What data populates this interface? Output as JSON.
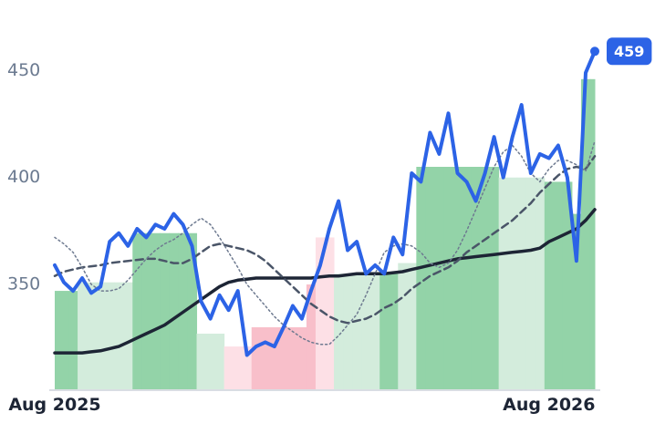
{
  "chart_data": {
    "type": "line",
    "categories": [
      "Aug 2025",
      null,
      null,
      null,
      null,
      null,
      null,
      null,
      null,
      null,
      null,
      null,
      null,
      null,
      null,
      null,
      null,
      null,
      null,
      null,
      null,
      null,
      null,
      null,
      null,
      null,
      null,
      null,
      null,
      null,
      null,
      null,
      null,
      null,
      null,
      null,
      null,
      null,
      null,
      null,
      null,
      null,
      null,
      null,
      null,
      null,
      null,
      null,
      null,
      null,
      null,
      null,
      null,
      null,
      "Aug 2026",
      null,
      null,
      null,
      null,
      null
    ],
    "ylim": [
      301,
      483
    ],
    "yticks": [
      350,
      400,
      450
    ],
    "bars": {
      "values": [
        347,
        347,
        347,
        351,
        351,
        351,
        351,
        351,
        351,
        374,
        374,
        374,
        374,
        374,
        374,
        374,
        327,
        327,
        327,
        321,
        321,
        321,
        330,
        330,
        330,
        330,
        330,
        330,
        350,
        372,
        372,
        355,
        355,
        355,
        355,
        355,
        355,
        355,
        360,
        360,
        405,
        405,
        405,
        405,
        405,
        405,
        405,
        405,
        405,
        400,
        400,
        400,
        400,
        400,
        398,
        398,
        398,
        383,
        446,
        446
      ],
      "colors": [
        "#93d3a8",
        "#93d3a8",
        "#93d3a8",
        "#d3ecdc",
        "#d3ecdc",
        "#d3ecdc",
        "#d3ecdc",
        "#d3ecdc",
        "#d3ecdc",
        "#93d3a8",
        "#93d3a8",
        "#93d3a8",
        "#93d3a8",
        "#93d3a8",
        "#93d3a8",
        "#93d3a8",
        "#d3ecdc",
        "#d3ecdc",
        "#d3ecdc",
        "#fde0e6",
        "#fde0e6",
        "#fde0e6",
        "#f8bfca",
        "#f8bfca",
        "#f8bfca",
        "#f8bfca",
        "#f8bfca",
        "#f8bfca",
        "#f8bfca",
        "#fde0e6",
        "#fde0e6",
        "#d3ecdc",
        "#d3ecdc",
        "#d3ecdc",
        "#d3ecdc",
        "#d3ecdc",
        "#93d3a8",
        "#93d3a8",
        "#d3ecdc",
        "#d3ecdc",
        "#93d3a8",
        "#93d3a8",
        "#93d3a8",
        "#93d3a8",
        "#93d3a8",
        "#93d3a8",
        "#93d3a8",
        "#93d3a8",
        "#93d3a8",
        "#d3ecdc",
        "#d3ecdc",
        "#d3ecdc",
        "#d3ecdc",
        "#d3ecdc",
        "#93d3a8",
        "#93d3a8",
        "#93d3a8",
        "#93d3a8",
        "#93d3a8",
        "#93d3a8"
      ]
    },
    "series": [
      {
        "color": "#1d2535",
        "width": 3.5,
        "dash": "none",
        "values": [
          318,
          318,
          318,
          318,
          318.5,
          319,
          320,
          321,
          323,
          325,
          327,
          329,
          331,
          334,
          337,
          340,
          343,
          346,
          349,
          351,
          352,
          352.5,
          353,
          353,
          353,
          353,
          353,
          353,
          353,
          353.5,
          354,
          354,
          354.5,
          355,
          355,
          355,
          355,
          355.5,
          356,
          357,
          358,
          359,
          360,
          361,
          362,
          362.5,
          363,
          363.5,
          364,
          364.5,
          365,
          365.5,
          366,
          367,
          370,
          372,
          374,
          376,
          380,
          385
        ]
      },
      {
        "color": "#4a5568",
        "width": 2.5,
        "dash": "8 5",
        "values": [
          354,
          356,
          357,
          358,
          358.5,
          359,
          360,
          360.5,
          361,
          361.5,
          362,
          362,
          361,
          360,
          360,
          362,
          365,
          368,
          369,
          368,
          367,
          366,
          364,
          361,
          357,
          353,
          349,
          345,
          341,
          338,
          335,
          333,
          332,
          333,
          334,
          336,
          339,
          341,
          344,
          348,
          351,
          354,
          356,
          358,
          361,
          365,
          368,
          371,
          374,
          377,
          380,
          384,
          388,
          393,
          397,
          401,
          404,
          405,
          404,
          410
        ]
      },
      {
        "color": "#6e7a90",
        "width": 1.5,
        "dash": "2 3",
        "values": [
          372,
          369,
          365,
          358,
          350,
          347,
          347,
          348,
          352,
          357,
          362,
          366,
          369,
          371,
          374,
          378,
          381,
          378,
          372,
          365,
          358,
          350,
          345,
          340,
          335,
          331,
          328,
          325,
          323,
          322,
          322,
          326,
          331,
          336,
          345,
          355,
          365,
          368,
          369,
          368,
          365,
          360,
          358,
          360,
          366,
          375,
          385,
          395,
          405,
          412,
          415,
          410,
          402,
          398,
          404,
          408,
          408,
          406,
          403,
          417
        ]
      },
      {
        "color": "#2c63e6",
        "width": 4,
        "dash": "none",
        "last_badge": true,
        "values": [
          359,
          351,
          347,
          353,
          346,
          349,
          370,
          374,
          368,
          376,
          372,
          378,
          376,
          383,
          378,
          368,
          342,
          334,
          345,
          338,
          347,
          317,
          321,
          323,
          321,
          330,
          340,
          334,
          347,
          359,
          376,
          389,
          366,
          370,
          355,
          359,
          355,
          372,
          364,
          402,
          398,
          421,
          411,
          430,
          402,
          398,
          389,
          402,
          419,
          400,
          419,
          434,
          402,
          411,
          409,
          415,
          400,
          361,
          449,
          459
        ]
      }
    ]
  }
}
